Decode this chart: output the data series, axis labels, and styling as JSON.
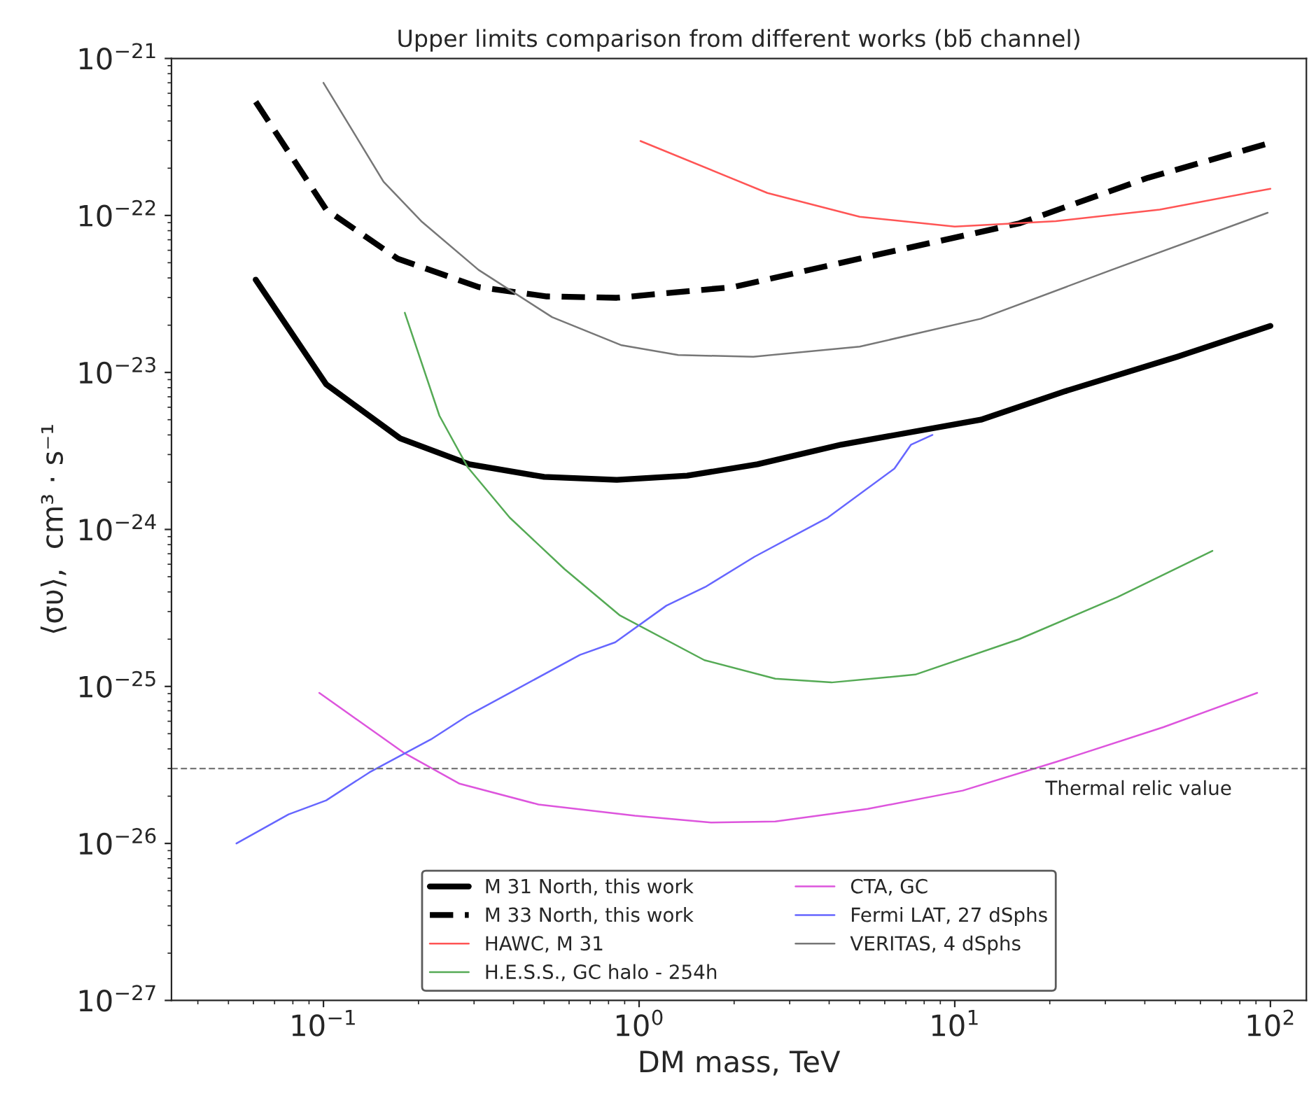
{
  "chart_data": {
    "type": "line",
    "title": "Upper limits comparison from different works (bb̄ channel)",
    "xlabel": "DM mass, TeV",
    "ylabel": "⟨συ⟩,  cm³ · s⁻¹",
    "log": "xy",
    "grid": false,
    "legend": "bottom",
    "xlim": [
      0.033,
      130
    ],
    "ylim": [
      1e-27,
      1e-21
    ],
    "xticks": [
      {
        "value": 0.1,
        "label": "10$^{−1}$"
      },
      {
        "value": 1,
        "label": "10$^{0}$"
      },
      {
        "value": 10,
        "label": "10$^{1}$"
      },
      {
        "value": 100,
        "label": "10$^{2}$"
      }
    ],
    "yticks": [
      {
        "value": 1e-27,
        "label": "10$^{−27}$"
      },
      {
        "value": 1e-26,
        "label": "10$^{−26}$"
      },
      {
        "value": 1e-25,
        "label": "10$^{−25}$"
      },
      {
        "value": 1e-24,
        "label": "10$^{−24}$"
      },
      {
        "value": 1e-23,
        "label": "10$^{−23}$"
      },
      {
        "value": 1e-22,
        "label": "10$^{−22}$"
      },
      {
        "value": 1e-21,
        "label": "10$^{−21}$"
      }
    ],
    "series": [
      {
        "name": "M 31 North, this work",
        "color": "#000000",
        "line_style": "solid",
        "x": [
          0.061,
          0.102,
          0.175,
          0.29,
          0.5,
          0.85,
          1.42,
          2.37,
          4.37,
          12.1,
          22.4,
          50.7,
          100
        ],
        "values": [
          3.9e-23,
          8.4e-24,
          3.8e-24,
          2.6e-24,
          2.16e-24,
          2.07e-24,
          2.2e-24,
          2.6e-24,
          3.47e-24,
          5e-24,
          7.6e-24,
          1.26e-23,
          1.98e-23
        ]
      },
      {
        "name": "M 33 North, this work",
        "color": "#000000",
        "line_style": "dashed",
        "x": [
          0.061,
          0.102,
          0.172,
          0.31,
          0.51,
          0.85,
          1.99,
          5.4,
          16,
          41,
          100
        ],
        "values": [
          5.3e-22,
          1.09e-22,
          5.3e-23,
          3.5e-23,
          3.05e-23,
          2.99e-23,
          3.5e-23,
          5.5e-23,
          8.9e-23,
          1.74e-22,
          2.9e-22
        ]
      },
      {
        "name": "HAWC, M 31",
        "color": "#ff5555",
        "line_style": "solid",
        "x": [
          1.01,
          2.55,
          5.0,
          10,
          20.9,
          44.6,
          100
        ],
        "values": [
          2.98e-22,
          1.39e-22,
          9.8e-23,
          8.5e-23,
          9.2e-23,
          1.09e-22,
          1.48e-22
        ]
      },
      {
        "name": "H.E.S.S., GC halo - 254h",
        "color": "#55aa55",
        "line_style": "solid",
        "x": [
          0.181,
          0.233,
          0.286,
          0.389,
          0.58,
          0.87,
          1.61,
          2.7,
          4.07,
          7.5,
          16,
          32.7,
          65.5
        ],
        "values": [
          2.4e-23,
          5.3e-24,
          2.5e-24,
          1.19e-24,
          5.6e-25,
          2.83e-25,
          1.47e-25,
          1.12e-25,
          1.06e-25,
          1.19e-25,
          2e-25,
          3.7e-25,
          7.3e-25
        ]
      },
      {
        "name": "CTA, GC",
        "color": "#dd55dd",
        "line_style": "solid",
        "x": [
          0.097,
          0.179,
          0.27,
          0.48,
          0.97,
          1.69,
          2.7,
          5.3,
          10.6,
          20.9,
          45.8,
          90.8
        ],
        "values": [
          9.1e-26,
          3.8e-26,
          2.4e-26,
          1.77e-26,
          1.5e-26,
          1.36e-26,
          1.38e-26,
          1.66e-26,
          2.17e-26,
          3.3e-26,
          5.5e-26,
          9.1e-26
        ]
      },
      {
        "name": "Fermi LAT, 27 dSphs",
        "color": "#6666ff",
        "line_style": "solid",
        "x": [
          0.053,
          0.0775,
          0.102,
          0.14,
          0.219,
          0.286,
          0.405,
          0.65,
          0.84,
          1.22,
          1.62,
          2.32,
          3.96,
          6.44,
          7.27,
          8.5
        ],
        "values": [
          1e-26,
          1.53e-26,
          1.88e-26,
          2.84e-26,
          4.6e-26,
          6.5e-26,
          9.5e-26,
          1.59e-25,
          1.91e-25,
          3.27e-25,
          4.3e-25,
          6.7e-25,
          1.19e-24,
          2.44e-24,
          3.47e-24,
          4e-24
        ]
      },
      {
        "name": "VERITAS, 4 dSphs",
        "color": "#777777",
        "line_style": "solid",
        "x": [
          0.1,
          0.155,
          0.204,
          0.31,
          0.53,
          0.88,
          1.33,
          2.3,
          5.0,
          12.1,
          31.4,
          98
        ],
        "values": [
          7e-22,
          1.64e-22,
          9.2e-23,
          4.5e-23,
          2.25e-23,
          1.49e-23,
          1.29e-23,
          1.26e-23,
          1.46e-23,
          2.2e-23,
          4.5e-23,
          1.04e-22
        ]
      }
    ],
    "ref_lines": [
      {
        "axis": "y",
        "value": 3e-26,
        "label": "Thermal relic value",
        "color": "#777777",
        "line_style": "dashed"
      }
    ]
  }
}
